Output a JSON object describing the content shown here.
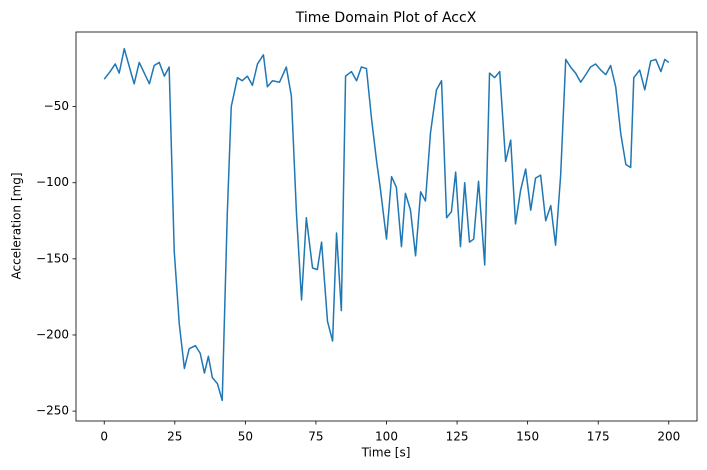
{
  "chart_data": {
    "type": "line",
    "title": "Time Domain Plot of AccX",
    "x_label": "Time [s]",
    "y_label": "Acceleration [mg]",
    "x": [
      0,
      2.1,
      3.9,
      5.3,
      7.1,
      10.6,
      12.4,
      16.0,
      17.7,
      19.5,
      21.3,
      23.0,
      24.8,
      26.6,
      28.4,
      30.1,
      32.3,
      34.0,
      35.5,
      36.9,
      38.3,
      40.1,
      41.8,
      43.6,
      45.0,
      47.2,
      48.9,
      50.7,
      52.5,
      54.3,
      56.4,
      57.8,
      59.6,
      62.1,
      64.5,
      66.3,
      68.1,
      69.9,
      71.6,
      73.8,
      75.5,
      77.0,
      79.1,
      80.9,
      82.3,
      84.0,
      85.5,
      87.6,
      89.4,
      91.1,
      92.9,
      94.7,
      96.5,
      97.9,
      100.0,
      101.8,
      103.5,
      105.3,
      106.7,
      108.5,
      110.3,
      112.1,
      113.8,
      115.6,
      117.7,
      119.5,
      121.3,
      123.0,
      124.5,
      126.2,
      127.7,
      129.4,
      130.9,
      132.6,
      134.8,
      136.5,
      138.3,
      140.1,
      142.2,
      144.0,
      145.7,
      147.5,
      149.3,
      151.1,
      152.8,
      154.6,
      156.4,
      158.2,
      159.9,
      161.7,
      163.5,
      165.2,
      167.0,
      168.8,
      170.6,
      172.3,
      174.1,
      175.9,
      177.7,
      179.4,
      181.2,
      183.0,
      184.8,
      186.5,
      187.6,
      189.7,
      191.5,
      193.6,
      195.4,
      197.2,
      198.6,
      200
    ],
    "series": [
      {
        "name": "AccX",
        "color": "#1f77b4",
        "values": [
          -32,
          -27,
          -22,
          -28,
          -12,
          -35,
          -21,
          -35,
          -23,
          -21,
          -30,
          -24,
          -145,
          -193,
          -222,
          -209,
          -207,
          -212,
          -225,
          -214,
          -228,
          -232,
          -243,
          -120,
          -50,
          -31,
          -33,
          -30,
          -36,
          -22,
          -16,
          -37,
          -33,
          -34,
          -24,
          -43,
          -120,
          -177,
          -123,
          -156,
          -157,
          -139,
          -191,
          -204,
          -133,
          -184,
          -30,
          -27,
          -33,
          -24,
          -25,
          -58,
          -86,
          -105,
          -137,
          -96,
          -103,
          -142,
          -107,
          -118,
          -148,
          -106,
          -112,
          -67,
          -39,
          -33,
          -123,
          -119,
          -93,
          -142,
          -100,
          -139,
          -137,
          -99,
          -154,
          -28,
          -31,
          -27,
          -86,
          -72,
          -127,
          -105,
          -91,
          -118,
          -97,
          -95,
          -125,
          -115,
          -141,
          -95,
          -19,
          -24,
          -28,
          -34,
          -29,
          -24,
          -22,
          -26,
          -29,
          -23,
          -37,
          -68,
          -88,
          -90,
          -31,
          -26,
          -39,
          -20,
          -19,
          -27,
          -19,
          -21
        ]
      }
    ],
    "xlim": [
      -10,
      210
    ],
    "ylim": [
      -256.5,
      -1
    ],
    "xticks": [
      0,
      25,
      50,
      75,
      100,
      125,
      150,
      175,
      200
    ],
    "yticks": [
      {
        "value": -250,
        "label": "−250"
      },
      {
        "value": -200,
        "label": "−200"
      },
      {
        "value": -150,
        "label": "−150"
      },
      {
        "value": -100,
        "label": "−100"
      },
      {
        "value": -50,
        "label": "−50"
      }
    ]
  }
}
